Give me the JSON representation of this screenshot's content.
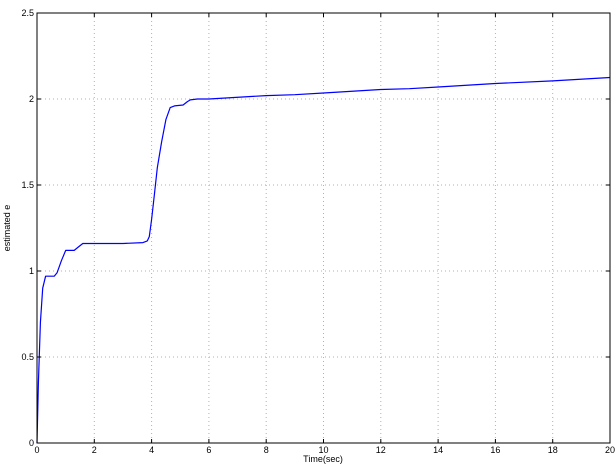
{
  "chart_data": {
    "type": "line",
    "title": "",
    "xlabel": "Time(sec)",
    "ylabel": "estimated e",
    "xlim": [
      0,
      20
    ],
    "ylim": [
      0,
      2.5
    ],
    "grid": true,
    "xticks": [
      0,
      2,
      4,
      6,
      8,
      10,
      12,
      14,
      16,
      18,
      20
    ],
    "yticks": [
      0,
      0.5,
      1,
      1.5,
      2,
      2.5
    ],
    "xtick_labels": [
      "0",
      "2",
      "4",
      "6",
      "8",
      "10",
      "12",
      "14",
      "16",
      "18",
      "20"
    ],
    "ytick_labels": [
      "0",
      "0.5",
      "1",
      "1.5",
      "2",
      "2.5"
    ],
    "line_color": "#0000ff",
    "series": [
      {
        "x": [
          0,
          0.05,
          0.12,
          0.2,
          0.3,
          0.4,
          0.6,
          0.7,
          0.85,
          1.0,
          1.3,
          1.45,
          1.6,
          2.0,
          3.0,
          3.7,
          3.85,
          3.92,
          4.0,
          4.1,
          4.2,
          4.35,
          4.5,
          4.65,
          4.8,
          5.1,
          5.25,
          5.35,
          5.6,
          6.0,
          8.0,
          9.0,
          10.0,
          12.0,
          13.0,
          14.0,
          16.0,
          18.0,
          20.0
        ],
        "y": [
          0,
          0.35,
          0.7,
          0.9,
          0.97,
          0.97,
          0.97,
          0.99,
          1.06,
          1.12,
          1.12,
          1.14,
          1.16,
          1.16,
          1.16,
          1.165,
          1.175,
          1.2,
          1.3,
          1.45,
          1.6,
          1.75,
          1.88,
          1.95,
          1.96,
          1.965,
          1.985,
          1.995,
          2.0,
          2.0,
          2.02,
          2.025,
          2.035,
          2.055,
          2.06,
          2.07,
          2.09,
          2.105,
          2.125
        ]
      }
    ]
  }
}
